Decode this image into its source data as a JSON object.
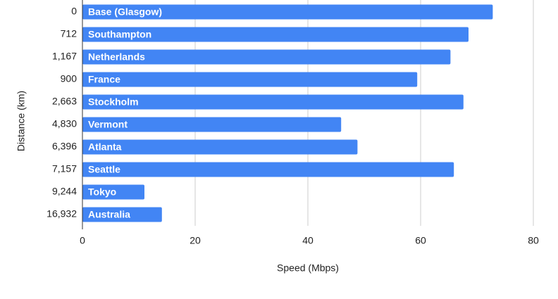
{
  "chart_data": {
    "type": "bar",
    "orientation": "horizontal",
    "categories": [
      "0",
      "712",
      "1,167",
      "900",
      "2,663",
      "4,830",
      "6,396",
      "7,157",
      "9,244",
      "16,932"
    ],
    "labels": [
      "Base (Glasgow)",
      "Southampton",
      "Netherlands",
      "France",
      "Stockholm",
      "Vermont",
      "Atlanta",
      "Seattle",
      "Tokyo",
      "Australia"
    ],
    "values": [
      72.8,
      68.5,
      65.3,
      59.4,
      67.6,
      45.9,
      48.8,
      65.9,
      11,
      14.1
    ],
    "color": "#4285f4",
    "xlabel": "Speed (Mbps)",
    "ylabel": "Distance (km)",
    "xlim": [
      0,
      80
    ],
    "xticks": [
      0,
      20,
      40,
      60,
      80
    ],
    "grid": true
  }
}
